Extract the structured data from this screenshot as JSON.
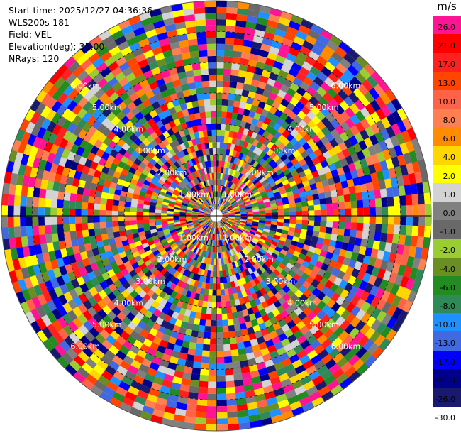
{
  "info": {
    "start_time": "Start time: 2025/12/27 04:36:36",
    "instrument": "WLS200s-181",
    "field": "Field: VEL",
    "elevation": "Elevation(deg): 35.00",
    "nrays": "NRays: 120"
  },
  "legend": {
    "unit": "m/s",
    "levels": [
      {
        "label": "26.0",
        "color": "#ff1493"
      },
      {
        "label": "21.0",
        "color": "#ff0000"
      },
      {
        "label": "17.0",
        "color": "#ff2020"
      },
      {
        "label": "13.0",
        "color": "#ff4500"
      },
      {
        "label": "10.0",
        "color": "#ff6347"
      },
      {
        "label": "8.0",
        "color": "#ff7f50"
      },
      {
        "label": "6.0",
        "color": "#ff8c00"
      },
      {
        "label": "4.0",
        "color": "#ffd700"
      },
      {
        "label": "2.0",
        "color": "#ffff00"
      },
      {
        "label": "1.0",
        "color": "#d3d3d3"
      },
      {
        "label": "0.0",
        "color": "#808080"
      },
      {
        "label": "-1.0",
        "color": "#696969"
      },
      {
        "label": "-2.0",
        "color": "#9acd32"
      },
      {
        "label": "-4.0",
        "color": "#6b8e23"
      },
      {
        "label": "-6.0",
        "color": "#228b22"
      },
      {
        "label": "-8.0",
        "color": "#2e8b57"
      },
      {
        "label": "-10.0",
        "color": "#1e90ff"
      },
      {
        "label": "-13.0",
        "color": "#4169e1"
      },
      {
        "label": "-17.0",
        "color": "#0000ff"
      },
      {
        "label": "-21.0",
        "color": "#00008b"
      },
      {
        "label": "-26.0",
        "color": "#191970"
      },
      {
        "label": "-30.0",
        "color": ""
      }
    ]
  },
  "chart_data": {
    "type": "heatmap",
    "projection": "polar-ppi",
    "field": "VEL",
    "unit": "m/s",
    "nrays": 120,
    "max_range_km": 7.0,
    "range_gates": 35,
    "range_rings": [
      {
        "range_km": 1.0,
        "label": "1.00km"
      },
      {
        "range_km": 2.0,
        "label": "2.00km"
      },
      {
        "range_km": 3.0,
        "label": "3.00km"
      },
      {
        "range_km": 4.0,
        "label": "4.00km"
      },
      {
        "range_km": 5.0,
        "label": "5.00km"
      },
      {
        "range_km": 6.0,
        "label": "6.00km"
      }
    ],
    "ring_label_azimuths_deg": [
      45,
      135,
      225,
      315
    ],
    "value_distribution": "noise — velocities scattered across full range -30 to 26 m/s",
    "seed": 181
  }
}
